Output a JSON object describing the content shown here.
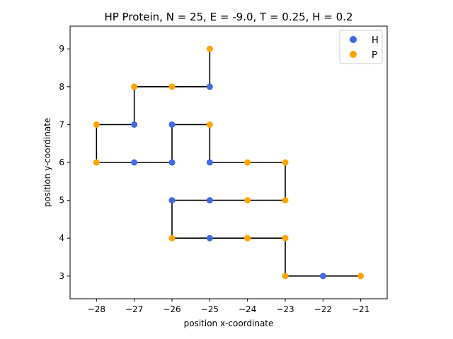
{
  "chart_data": {
    "type": "scatter",
    "title": "HP Protein, N = 25, E = -9.0, T = 0.25, H = 0.2",
    "xlabel": "position x-coordinate",
    "ylabel": "position y-coordinate",
    "xlim": [
      -28.7,
      -20.3
    ],
    "ylim": [
      2.4,
      9.6
    ],
    "xticks": [
      -28,
      -27,
      -26,
      -25,
      -24,
      -23,
      -22,
      -21
    ],
    "xtick_labels": [
      "−28",
      "−27",
      "−26",
      "−25",
      "−24",
      "−23",
      "−22",
      "−21"
    ],
    "yticks": [
      3,
      4,
      5,
      6,
      7,
      8,
      9
    ],
    "ytick_labels": [
      "3",
      "4",
      "5",
      "6",
      "7",
      "8",
      "9"
    ],
    "grid": false,
    "legend": {
      "placement": "top-right",
      "entries": [
        {
          "label": "H",
          "color": "#4169e1"
        },
        {
          "label": "P",
          "color": "#ffa500"
        }
      ]
    },
    "chain_color": "#000000",
    "chain": [
      {
        "x": -21,
        "y": 3,
        "type": "P"
      },
      {
        "x": -22,
        "y": 3,
        "type": "H"
      },
      {
        "x": -23,
        "y": 3,
        "type": "P"
      },
      {
        "x": -23,
        "y": 4,
        "type": "P"
      },
      {
        "x": -24,
        "y": 4,
        "type": "P"
      },
      {
        "x": -25,
        "y": 4,
        "type": "H"
      },
      {
        "x": -26,
        "y": 4,
        "type": "P"
      },
      {
        "x": -26,
        "y": 5,
        "type": "H"
      },
      {
        "x": -25,
        "y": 5,
        "type": "H"
      },
      {
        "x": -24,
        "y": 5,
        "type": "P"
      },
      {
        "x": -23,
        "y": 5,
        "type": "P"
      },
      {
        "x": -23,
        "y": 6,
        "type": "P"
      },
      {
        "x": -24,
        "y": 6,
        "type": "P"
      },
      {
        "x": -25,
        "y": 6,
        "type": "H"
      },
      {
        "x": -25,
        "y": 7,
        "type": "P"
      },
      {
        "x": -26,
        "y": 7,
        "type": "H"
      },
      {
        "x": -26,
        "y": 6,
        "type": "H"
      },
      {
        "x": -27,
        "y": 6,
        "type": "H"
      },
      {
        "x": -28,
        "y": 6,
        "type": "P"
      },
      {
        "x": -28,
        "y": 7,
        "type": "P"
      },
      {
        "x": -27,
        "y": 7,
        "type": "H"
      },
      {
        "x": -27,
        "y": 8,
        "type": "P"
      },
      {
        "x": -26,
        "y": 8,
        "type": "P"
      },
      {
        "x": -25,
        "y": 8,
        "type": "H"
      },
      {
        "x": -25,
        "y": 9,
        "type": "P"
      }
    ]
  }
}
